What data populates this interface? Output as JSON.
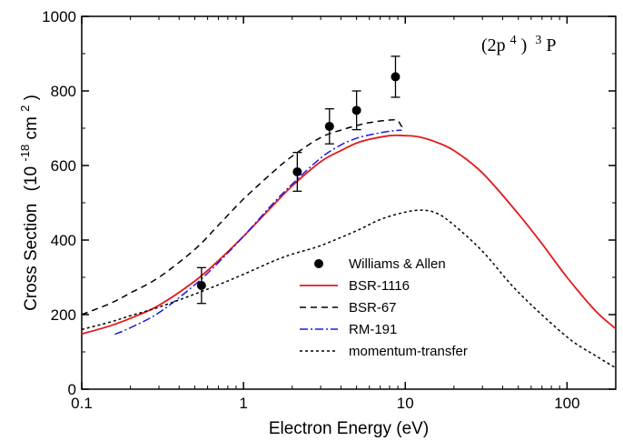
{
  "chart_data": {
    "type": "line",
    "title": "",
    "annotation": {
      "config": "(2p",
      "sup1": "4",
      "close": ")",
      "sup2": "3",
      "term": "P"
    },
    "xlabel": "Electron Energy (eV)",
    "ylabel": {
      "main": "Cross Section",
      "unit_open": "(10",
      "unit_exp": "-18",
      "unit_mid": "cm",
      "unit_exp2": "2",
      "unit_close": ")"
    },
    "xscale": "log",
    "xlim": [
      0.1,
      200
    ],
    "ylim": [
      0,
      1000
    ],
    "xticks": [
      0.1,
      1,
      10,
      100
    ],
    "xtick_labels": [
      "0.1",
      "1",
      "10",
      "100"
    ],
    "yticks": [
      0,
      200,
      400,
      600,
      800,
      1000
    ],
    "ytick_labels": [
      "0",
      "200",
      "400",
      "600",
      "800",
      "1000"
    ],
    "grid": false,
    "legend_position": "lower-center",
    "colors": {
      "bsr1116": "#e31a1c",
      "bsr67": "#000000",
      "rm191": "#1a1ae6",
      "mt": "#000000",
      "data": "#000000"
    },
    "points": {
      "name": "Williams & Allen",
      "x": [
        0.55,
        2.15,
        3.4,
        5.0,
        8.7
      ],
      "y": [
        278,
        583,
        705,
        748,
        838
      ],
      "err": [
        48,
        52,
        47,
        52,
        55
      ]
    },
    "series": [
      {
        "name": "BSR-1116",
        "style": "solid",
        "x": [
          0.1,
          0.15,
          0.2,
          0.3,
          0.5,
          0.7,
          1,
          1.5,
          2,
          3,
          4,
          5,
          6,
          8,
          10,
          12,
          15,
          20,
          30,
          50,
          70,
          100,
          150,
          200
        ],
        "y": [
          148,
          170,
          190,
          225,
          290,
          345,
          410,
          490,
          545,
          610,
          640,
          660,
          670,
          680,
          680,
          677,
          665,
          640,
          580,
          470,
          390,
          300,
          210,
          162
        ]
      },
      {
        "name": "BSR-67",
        "style": "dashed",
        "x": [
          0.1,
          0.15,
          0.2,
          0.3,
          0.5,
          0.7,
          1,
          1.5,
          2,
          3,
          4,
          5,
          6,
          8,
          9,
          9.5,
          10
        ],
        "y": [
          200,
          230,
          258,
          300,
          375,
          440,
          510,
          580,
          625,
          675,
          695,
          707,
          715,
          722,
          720,
          705,
          710
        ]
      },
      {
        "name": "RM-191",
        "style": "dashdot",
        "x": [
          0.16,
          0.2,
          0.3,
          0.5,
          0.7,
          1,
          1.5,
          2,
          3,
          4,
          5,
          6,
          8,
          9.5
        ],
        "y": [
          147,
          165,
          205,
          280,
          340,
          410,
          495,
          550,
          620,
          655,
          673,
          682,
          692,
          695
        ]
      },
      {
        "name": "momentum-transfer",
        "style": "dotted",
        "x": [
          0.1,
          0.15,
          0.2,
          0.3,
          0.5,
          0.7,
          1,
          1.5,
          2,
          3,
          5,
          7,
          10,
          13,
          16,
          20,
          30,
          50,
          100,
          150,
          200
        ],
        "y": [
          160,
          180,
          197,
          220,
          255,
          280,
          308,
          342,
          362,
          385,
          425,
          455,
          475,
          480,
          470,
          440,
          370,
          260,
          140,
          90,
          57
        ]
      }
    ]
  }
}
